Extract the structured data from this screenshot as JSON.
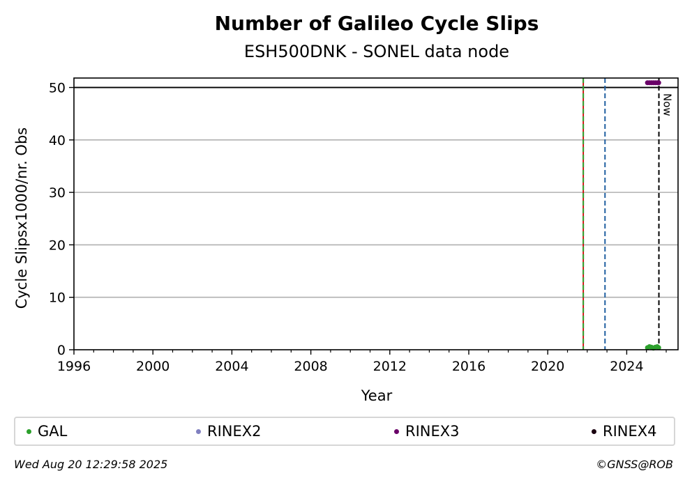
{
  "chart_data": {
    "type": "scatter",
    "title": "Number of Galileo Cycle Slips",
    "subtitle": "ESH500DNK - SONEL data node",
    "xlabel": "Year",
    "ylabel": "Cycle Slipsx1000/nr. Obs",
    "xlim": [
      1996,
      2026.6
    ],
    "ylim": [
      0,
      51.8
    ],
    "x_ticks": [
      1996,
      2000,
      2004,
      2008,
      2012,
      2016,
      2020,
      2024
    ],
    "y_ticks": [
      0,
      10,
      20,
      30,
      40,
      50
    ],
    "grid": "horizontal",
    "reference_lines": [
      {
        "y": 50,
        "color": "#000000",
        "style": "solid"
      },
      {
        "x": 2021.8,
        "color": "#cc0000",
        "style": "solid"
      },
      {
        "x": 2021.8,
        "color": "#2ca02c",
        "style": "dashed"
      },
      {
        "x": 2022.9,
        "color": "#1f5fa0",
        "style": "dashed"
      },
      {
        "x": 2025.63,
        "color": "#000000",
        "style": "dashed",
        "label": "Now"
      }
    ],
    "series": [
      {
        "name": "GAL",
        "color": "#2ca02c",
        "points": [
          [
            2025.05,
            0.4
          ],
          [
            2025.15,
            0.6
          ],
          [
            2025.25,
            0.5
          ],
          [
            2025.35,
            0.3
          ],
          [
            2025.45,
            0.5
          ],
          [
            2025.55,
            0.6
          ],
          [
            2025.62,
            0.4
          ]
        ]
      },
      {
        "name": "RINEX2",
        "color": "#8080c0",
        "points": []
      },
      {
        "name": "RINEX3",
        "color": "#6a0068",
        "points": [
          [
            2025.05,
            50.9
          ],
          [
            2025.15,
            50.9
          ],
          [
            2025.25,
            50.9
          ],
          [
            2025.35,
            50.9
          ],
          [
            2025.45,
            50.9
          ],
          [
            2025.55,
            50.9
          ],
          [
            2025.62,
            50.9
          ]
        ]
      },
      {
        "name": "RINEX4",
        "color": "#1a0010",
        "points": []
      }
    ],
    "legend_position": "bottom"
  },
  "footer": {
    "timestamp": "Wed Aug 20 12:29:58 2025",
    "credit": "©GNSS@ROB"
  }
}
